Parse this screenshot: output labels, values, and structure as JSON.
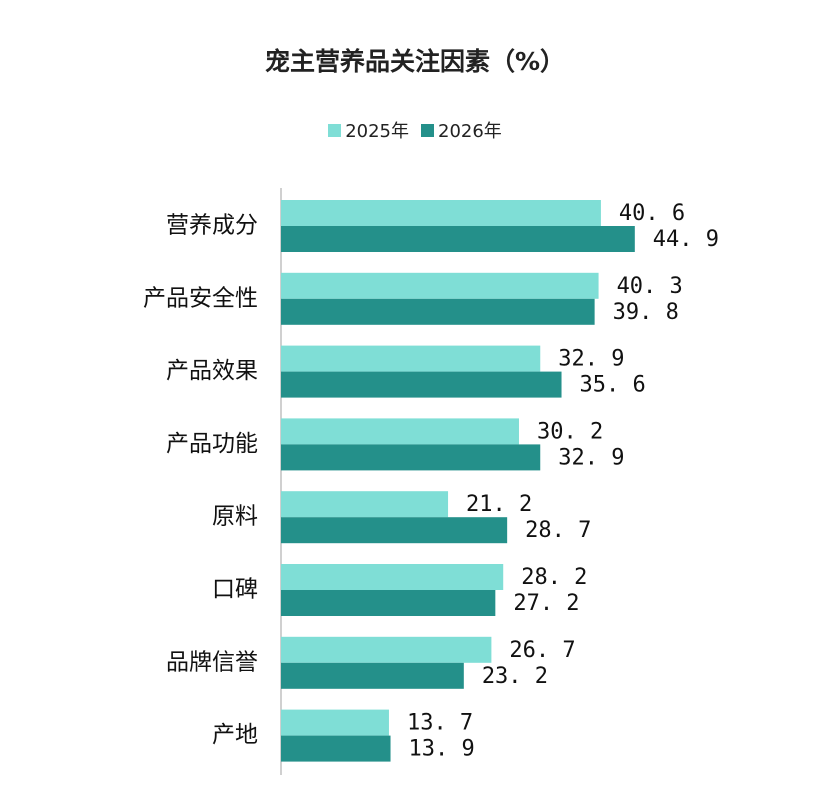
{
  "chart_data": {
    "type": "bar",
    "orientation": "horizontal",
    "title": "宠主营养品关注因素（%）",
    "categories": [
      "营养成分",
      "产品安全性",
      "产品效果",
      "产品功能",
      "原料",
      "口碑",
      "品牌信誉",
      "产地"
    ],
    "series": [
      {
        "name": "2025年",
        "color": "#7FDED6",
        "values": [
          40.6,
          40.3,
          32.9,
          30.2,
          21.2,
          28.2,
          26.7,
          13.7
        ]
      },
      {
        "name": "2026年",
        "color": "#24908A",
        "values": [
          44.9,
          39.8,
          35.6,
          32.9,
          28.7,
          27.2,
          23.2,
          13.9
        ]
      }
    ],
    "xlim": [
      0,
      50
    ],
    "grid": false,
    "legend_position": "top-center"
  }
}
